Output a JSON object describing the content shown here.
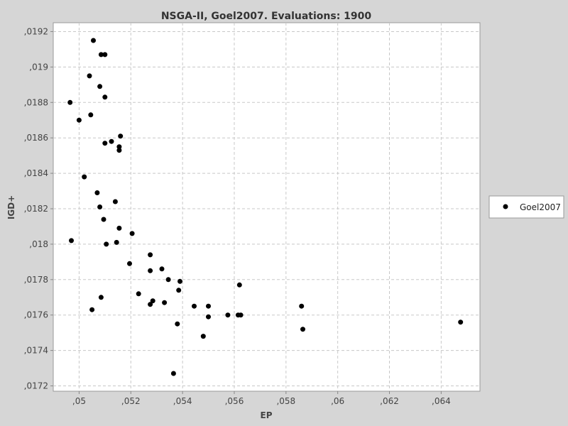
{
  "chart_data": {
    "type": "scatter",
    "title": "NSGA-II, Goel2007. Evaluations: 1900",
    "xlabel": "EP",
    "ylabel": "IGD+",
    "xlim": [
      0.049,
      0.0655
    ],
    "ylim": [
      0.01717,
      0.01925
    ],
    "x_ticks": [
      0.05,
      0.052,
      0.054,
      0.056,
      0.058,
      0.06,
      0.062,
      0.064
    ],
    "x_tick_labels": [
      ",05",
      ",052",
      ",054",
      ",056",
      ",058",
      ",06",
      ",062",
      ",064"
    ],
    "y_ticks": [
      0.0172,
      0.0174,
      0.0176,
      0.0178,
      0.018,
      0.0182,
      0.0184,
      0.0186,
      0.0188,
      0.019,
      0.0192
    ],
    "y_tick_labels": [
      ",0172",
      ",0174",
      ",0176",
      ",0178",
      ",018",
      ",0182",
      ",0184",
      ",0186",
      ",0188",
      ",019",
      ",0192"
    ],
    "grid": true,
    "legend_position": "right",
    "series": [
      {
        "name": "Goel2007",
        "color": "#000000",
        "points": [
          [
            0.05055,
            0.01915
          ],
          [
            0.05085,
            0.01907
          ],
          [
            0.051,
            0.01907
          ],
          [
            0.0504,
            0.01895
          ],
          [
            0.0508,
            0.01889
          ],
          [
            0.051,
            0.01883
          ],
          [
            0.04965,
            0.0188
          ],
          [
            0.05045,
            0.01873
          ],
          [
            0.05,
            0.0187
          ],
          [
            0.0516,
            0.01861
          ],
          [
            0.05125,
            0.01858
          ],
          [
            0.051,
            0.01857
          ],
          [
            0.05155,
            0.01855
          ],
          [
            0.05155,
            0.01853
          ],
          [
            0.0502,
            0.01838
          ],
          [
            0.0507,
            0.01829
          ],
          [
            0.0514,
            0.01824
          ],
          [
            0.0508,
            0.01821
          ],
          [
            0.05095,
            0.01814
          ],
          [
            0.05155,
            0.01809
          ],
          [
            0.05205,
            0.01806
          ],
          [
            0.0497,
            0.01802
          ],
          [
            0.05145,
            0.01801
          ],
          [
            0.05105,
            0.018
          ],
          [
            0.05275,
            0.01794
          ],
          [
            0.05195,
            0.01789
          ],
          [
            0.05275,
            0.01785
          ],
          [
            0.0532,
            0.01786
          ],
          [
            0.05345,
            0.0178
          ],
          [
            0.0539,
            0.01779
          ],
          [
            0.05385,
            0.01774
          ],
          [
            0.0523,
            0.01772
          ],
          [
            0.05085,
            0.0177
          ],
          [
            0.05285,
            0.01768
          ],
          [
            0.05275,
            0.01766
          ],
          [
            0.0533,
            0.01767
          ],
          [
            0.05445,
            0.01765
          ],
          [
            0.055,
            0.01765
          ],
          [
            0.0505,
            0.01763
          ],
          [
            0.055,
            0.01759
          ],
          [
            0.05575,
            0.0176
          ],
          [
            0.05615,
            0.0176
          ],
          [
            0.05625,
            0.0176
          ],
          [
            0.0562,
            0.01777
          ],
          [
            0.0586,
            0.01765
          ],
          [
            0.05865,
            0.01752
          ],
          [
            0.0538,
            0.01755
          ],
          [
            0.0548,
            0.01748
          ],
          [
            0.05365,
            0.01727
          ],
          [
            0.06475,
            0.01756
          ]
        ]
      }
    ]
  }
}
